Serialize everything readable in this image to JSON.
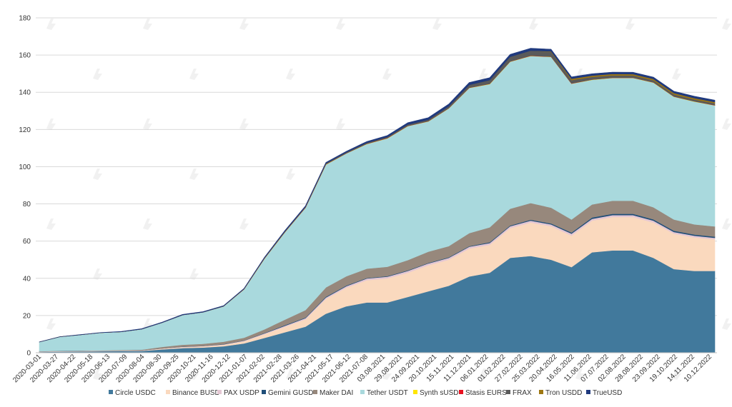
{
  "chart_data": {
    "type": "area",
    "stacked": true,
    "title": "",
    "xlabel": "",
    "ylabel": "",
    "ylim": [
      0,
      180
    ],
    "yticks": [
      0,
      20,
      40,
      60,
      80,
      100,
      120,
      140,
      160,
      180
    ],
    "grid": true,
    "legend_position": "bottom",
    "x_tick_labels": [
      "2020-03-01",
      "2020-03-27",
      "2020-04-22",
      "2020-05-18",
      "2020-06-13",
      "2020-07-09",
      "2020-08-04",
      "2020-08-30",
      "2020-09-25",
      "2020-10-21",
      "2020-11-16",
      "2020-12-12",
      "2021-01-07",
      "2021-02-02",
      "2021-02-28",
      "2021-03-26",
      "2021-04-21",
      "2021-05-17",
      "2021-06-12",
      "2021-07-08",
      "03.08.2021",
      "29.08.2021",
      "24.09.2021",
      "20.10.2021",
      "15.11.2021",
      "11.12.2021",
      "06.01.2022",
      "01.02.2022",
      "27.02.2022",
      "25.03.2022",
      "20.04.2022",
      "16.05.2022",
      "11.06.2022",
      "07.07.2022",
      "02.08.2022",
      "28.08.2022",
      "23.09.2022",
      "19.10.2022",
      "14.11.2022",
      "10.12.2022"
    ],
    "x": [
      "2020-03",
      "2020-04",
      "2020-05",
      "2020-06",
      "2020-07",
      "2020-08",
      "2020-09",
      "2020-10",
      "2020-11",
      "2020-12",
      "2021-01",
      "2021-02",
      "2021-03",
      "2021-04",
      "2021-05",
      "2021-06",
      "2021-07",
      "2021-08",
      "2021-09",
      "2021-10",
      "2021-11",
      "2021-12",
      "2022-01",
      "2022-02",
      "2022-03",
      "2022-04",
      "2022-05",
      "2022-06",
      "2022-07",
      "2022-08",
      "2022-09",
      "2022-10",
      "2022-11",
      "2022-12"
    ],
    "series": [
      {
        "name": "Circle USDC",
        "color": "#41799c",
        "values": [
          0.4,
          0.6,
          0.7,
          0.8,
          0.9,
          1.0,
          1.8,
          2.5,
          2.8,
          3.5,
          5,
          8,
          11,
          14,
          21,
          25,
          27,
          27,
          30,
          33,
          36,
          41,
          43,
          51,
          52,
          50,
          46,
          54,
          55,
          55,
          51,
          45,
          44,
          44
        ]
      },
      {
        "name": "Binance BUSD",
        "color": "#fad9be",
        "values": [
          0.2,
          0.2,
          0.2,
          0.2,
          0.2,
          0.2,
          0.4,
          0.5,
          0.6,
          0.8,
          1.2,
          2,
          3,
          4,
          8,
          10,
          12,
          13,
          13,
          14,
          14,
          15,
          15,
          16,
          18,
          18,
          17,
          17,
          18,
          18,
          19,
          19,
          18,
          17
        ]
      },
      {
        "name": "PAX USDP",
        "color": "#e4c7d3",
        "values": [
          0.1,
          0.1,
          0.1,
          0.1,
          0.1,
          0.1,
          0.1,
          0.2,
          0.2,
          0.2,
          0.3,
          0.4,
          0.5,
          0.6,
          0.7,
          0.8,
          0.9,
          0.9,
          1,
          1,
          1,
          1,
          1,
          1,
          1,
          1,
          1,
          1,
          1,
          1,
          1,
          0.9,
          0.9,
          0.8
        ]
      },
      {
        "name": "Gemini GUSD",
        "color": "#1f4e79",
        "values": [
          0.05,
          0.05,
          0.05,
          0.05,
          0.05,
          0.05,
          0.05,
          0.1,
          0.1,
          0.1,
          0.1,
          0.2,
          0.3,
          0.3,
          0.4,
          0.3,
          0.3,
          0.3,
          0.3,
          0.3,
          0.3,
          0.3,
          0.4,
          0.4,
          0.5,
          0.5,
          0.6,
          0.7,
          0.7,
          0.7,
          0.7,
          0.7,
          0.6,
          0.6
        ]
      },
      {
        "name": "Maker DAI",
        "color": "#97887c",
        "values": [
          0.1,
          0.1,
          0.1,
          0.1,
          0.2,
          0.3,
          0.8,
          1,
          1.1,
          1.3,
          1.5,
          2,
          3,
          4,
          5,
          5,
          5,
          5,
          5.5,
          6,
          6,
          7,
          8,
          9,
          9,
          8.5,
          7,
          7,
          7,
          7,
          6.5,
          6,
          5.5,
          5.5
        ]
      },
      {
        "name": "Tether USDT",
        "color": "#a9d9dd",
        "values": [
          4.9,
          7.5,
          8.5,
          9.5,
          9.8,
          11,
          13,
          16,
          17,
          19,
          26,
          38,
          47,
          55,
          66,
          66,
          67,
          69,
          72,
          70,
          74,
          78,
          77,
          79,
          79,
          81,
          73,
          67,
          66,
          66,
          67,
          66,
          66,
          65
        ]
      },
      {
        "name": "Synth sUSD",
        "color": "#ffe600",
        "values": [
          0,
          0,
          0,
          0,
          0,
          0,
          0,
          0,
          0,
          0.05,
          0.05,
          0.1,
          0.1,
          0.1,
          0.15,
          0.1,
          0.1,
          0.1,
          0.1,
          0.1,
          0.1,
          0.1,
          0.1,
          0.1,
          0.1,
          0.1,
          0.1,
          0.1,
          0.1,
          0.1,
          0.1,
          0.1,
          0.1,
          0.1
        ]
      },
      {
        "name": "Stasis EURS",
        "color": "#e8101f",
        "values": [
          0,
          0,
          0,
          0,
          0,
          0,
          0,
          0,
          0,
          0,
          0.05,
          0.05,
          0.05,
          0.05,
          0.05,
          0.05,
          0.05,
          0.05,
          0.05,
          0.05,
          0.05,
          0.05,
          0.05,
          0.05,
          0.05,
          0.05,
          0.05,
          0.05,
          0.05,
          0.05,
          0.05,
          0.05,
          0.05,
          0.05
        ]
      },
      {
        "name": "FRAX",
        "color": "#5a5a5a",
        "values": [
          0,
          0,
          0,
          0,
          0,
          0,
          0,
          0,
          0,
          0.05,
          0.1,
          0.2,
          0.3,
          0.4,
          0.5,
          0.5,
          0.5,
          0.6,
          0.7,
          0.8,
          1,
          1.5,
          2,
          2.5,
          2.7,
          2.6,
          1.8,
          1.4,
          1.3,
          1.2,
          1.1,
          1.1,
          1.0,
          1.0
        ]
      },
      {
        "name": "Tron USDD",
        "color": "#9e7712",
        "values": [
          0,
          0,
          0,
          0,
          0,
          0,
          0,
          0,
          0,
          0,
          0,
          0,
          0,
          0,
          0,
          0,
          0,
          0,
          0,
          0,
          0,
          0,
          0,
          0,
          0,
          0.2,
          0.7,
          0.7,
          0.7,
          0.7,
          0.7,
          0.7,
          0.7,
          0.7
        ]
      },
      {
        "name": "TrueUSD",
        "color": "#203a7e",
        "values": [
          0.1,
          0.1,
          0.1,
          0.1,
          0.2,
          0.3,
          0.3,
          0.3,
          0.3,
          0.3,
          0.3,
          0.4,
          0.5,
          0.5,
          0.5,
          0.5,
          0.7,
          0.8,
          1,
          1.1,
          1.2,
          1.3,
          1.3,
          1.3,
          1.3,
          1.2,
          1.0,
          1.0,
          1.0,
          1.0,
          1.0,
          1.0,
          1.0,
          1.0
        ]
      }
    ]
  }
}
